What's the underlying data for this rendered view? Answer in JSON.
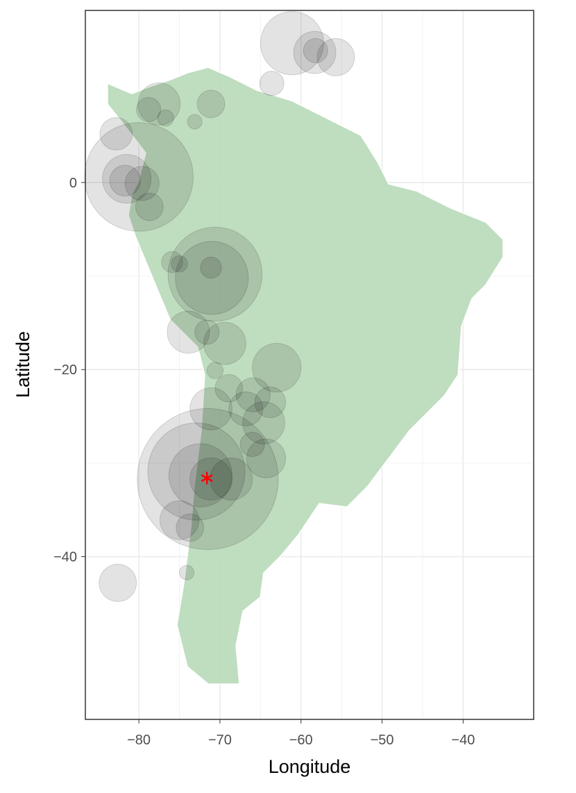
{
  "chart_data": {
    "type": "bubble-map",
    "x_label": "Longitude",
    "y_label": "Latitude",
    "xlim": [
      -86.6,
      -31.3
    ],
    "ylim": [
      -57.4,
      18.4
    ],
    "xticks": [
      {
        "value": -80,
        "label": "−80"
      },
      {
        "value": -70,
        "label": "−70"
      },
      {
        "value": -60,
        "label": "−60"
      },
      {
        "value": -50,
        "label": "−50"
      },
      {
        "value": -40,
        "label": "−40"
      }
    ],
    "yticks": [
      0,
      {
        "value": -20,
        "label": "−20"
      },
      {
        "value": -40,
        "label": "−40"
      }
    ],
    "grid": true,
    "land_color": "#bcdcbc",
    "bubble_color": "#000000",
    "points": {
      "x": [
        -61.1,
        -58.3,
        -55.7,
        -58.2,
        -63.6,
        -77.5,
        -78.8,
        -71.1,
        -76.7,
        -73.1,
        -82.8,
        -80.0,
        -81.5,
        -81.7,
        -79.6,
        -78.7,
        -70.6,
        -71.0,
        -75.9,
        -75.0,
        -71.1,
        -73.9,
        -71.6,
        -69.4,
        -63.0,
        -70.6,
        -68.9,
        -65.9,
        -63.8,
        -66.8,
        -64.6,
        -71.1,
        -71.5,
        -72.9,
        -72.4,
        -71.1,
        -64.3,
        -75.0,
        -73.7,
        -74.1,
        -82.6,
        -68.6,
        -66.0
      ],
      "y": [
        14.9,
        13.9,
        13.4,
        14.1,
        10.6,
        8.4,
        7.8,
        8.4,
        6.9,
        6.5,
        5.2,
        0.6,
        0.4,
        0.2,
        -0.1,
        -2.6,
        -9.8,
        -10.2,
        -8.5,
        -8.7,
        -9.1,
        -16.0,
        -16.0,
        -17.2,
        -19.8,
        -20.1,
        -22.0,
        -22.7,
        -23.5,
        -24.2,
        -25.7,
        -24.2,
        -31.7,
        -30.9,
        -31.3,
        -31.7,
        -29.5,
        -36.1,
        -36.9,
        -41.7,
        -42.8,
        -31.7,
        -28.0
      ],
      "sizes": [
        3.9,
        2.6,
        2.3,
        1.5,
        1.5,
        2.6,
        1.5,
        1.7,
        1.0,
        0.9,
        2.0,
        6.7,
        3.0,
        1.9,
        2.1,
        1.7,
        5.8,
        4.5,
        1.3,
        1.0,
        1.3,
        2.6,
        1.5,
        2.6,
        3.0,
        1.0,
        1.7,
        2.1,
        1.9,
        2.1,
        2.6,
        2.6,
        8.7,
        6.0,
        3.9,
        2.6,
        2.4,
        2.4,
        1.7,
        0.9,
        2.3,
        2.6,
        1.5
      ]
    },
    "highlight": {
      "x": -71.6,
      "y": -31.6,
      "color": "#ff0000"
    }
  }
}
